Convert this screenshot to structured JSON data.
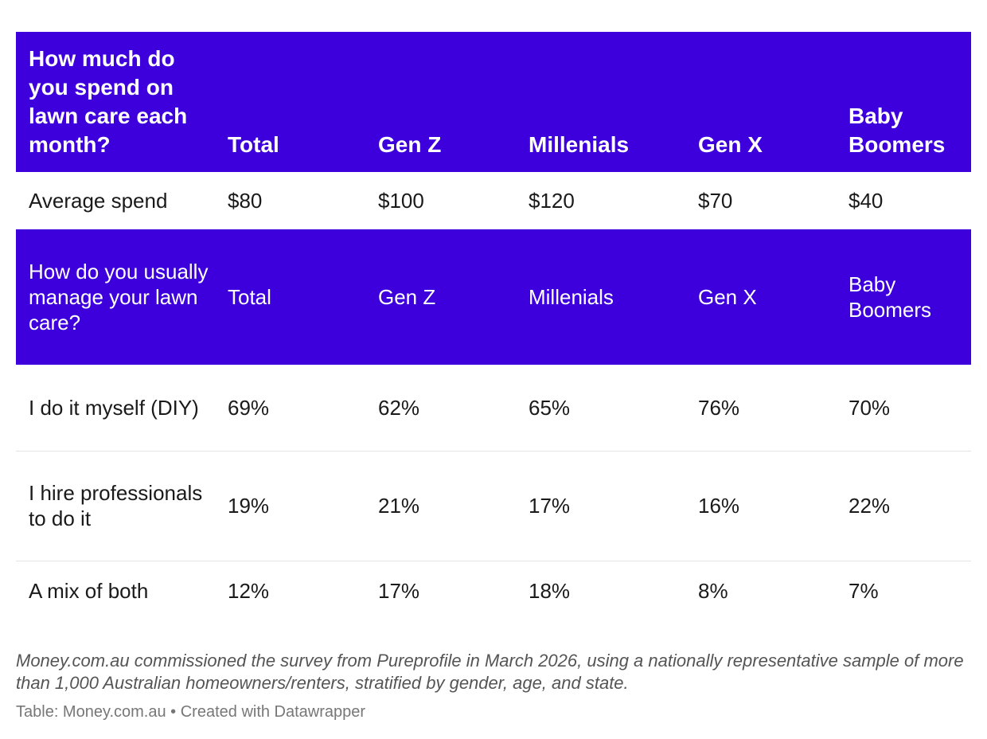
{
  "chart_data": {
    "type": "table",
    "columns": [
      "Total",
      "Gen Z",
      "Millenials",
      "Gen X",
      "Baby Boomers"
    ],
    "sections": [
      {
        "question": "How much do you spend on lawn care each month?",
        "rows": [
          {
            "label": "Average spend",
            "values": [
              "$80",
              "$100",
              "$120",
              "$70",
              "$40"
            ]
          }
        ]
      },
      {
        "question": "How do you usually manage your lawn care?",
        "rows": [
          {
            "label": "I do it myself (DIY)",
            "values": [
              "69%",
              "62%",
              "65%",
              "76%",
              "70%"
            ]
          },
          {
            "label": "I hire professionals to do it",
            "values": [
              "19%",
              "21%",
              "17%",
              "16%",
              "22%"
            ]
          },
          {
            "label": "A mix of both",
            "values": [
              "12%",
              "17%",
              "18%",
              "8%",
              "7%"
            ]
          }
        ]
      }
    ],
    "header_color": "#3d00dc"
  },
  "footnote": "Money.com.au commissioned the survey from Pureprofile in March 2026, using a nationally representative sample of more than 1,000 Australian homeowners/renters, stratified by gender, age, and state.",
  "source": "Table: Money.com.au • Created with Datawrapper"
}
